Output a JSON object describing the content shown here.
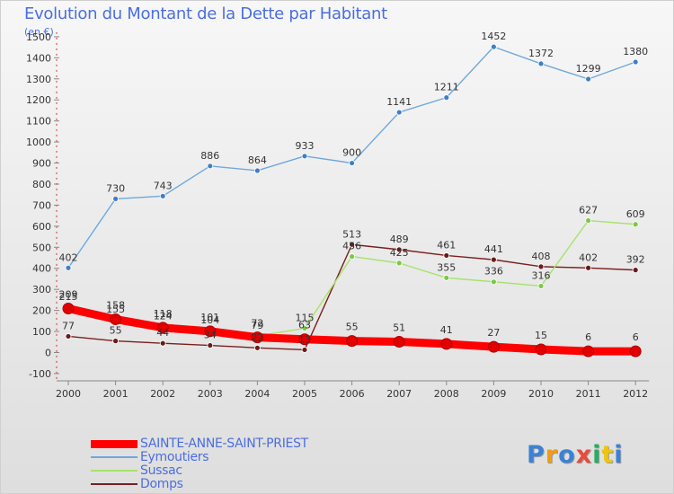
{
  "chart_data": {
    "type": "line",
    "title": "Evolution du Montant de la Dette par Habitant",
    "subtitle": "(en €)",
    "xlabel": "",
    "ylabel": "",
    "categories": [
      "2000",
      "2001",
      "2002",
      "2003",
      "2004",
      "2005",
      "2006",
      "2007",
      "2008",
      "2009",
      "2010",
      "2011",
      "2012"
    ],
    "ylim": [
      -100,
      1500
    ],
    "yticks": [
      -100,
      0,
      100,
      200,
      300,
      400,
      500,
      600,
      700,
      800,
      900,
      1000,
      1100,
      1200,
      1300,
      1400,
      1500
    ],
    "grid": false,
    "legend_position": "bottom-left",
    "series": [
      {
        "name": "SAINTE-ANNE-SAINT-PRIEST",
        "color": "#ff0000",
        "marker_color": "#e00000",
        "values": [
          209,
          158,
          118,
          101,
          72,
          63,
          55,
          51,
          41,
          27,
          15,
          6,
          6
        ],
        "labels": [
          "209",
          "158",
          "118",
          "101",
          "72",
          "63",
          "55",
          "51",
          "41",
          "27",
          "15",
          "6",
          "6"
        ]
      },
      {
        "name": "Eymoutiers",
        "color": "#6fa8dc",
        "marker_color": "#3f7fc4",
        "values": [
          402,
          730,
          743,
          886,
          864,
          933,
          900,
          1141,
          1211,
          1452,
          1372,
          1299,
          1380
        ],
        "labels": [
          "402",
          "730",
          "743",
          "886",
          "864",
          "933",
          "900",
          "1141",
          "1211",
          "1452",
          "1372",
          "1299",
          "1380"
        ]
      },
      {
        "name": "Sussac",
        "color": "#a6e36b",
        "marker_color": "#7ac943",
        "values": [
          215,
          155,
          124,
          104,
          79,
          115,
          456,
          425,
          355,
          336,
          316,
          627,
          609
        ],
        "labels": [
          "215",
          "155",
          "124",
          "104",
          "79",
          "115",
          "456",
          "425",
          "355",
          "336",
          "316",
          "627",
          "609"
        ]
      },
      {
        "name": "Domps",
        "color": "#7b1f1f",
        "marker_color": "#6a1a1a",
        "values": [
          77,
          55,
          44,
          34,
          22,
          13,
          513,
          489,
          461,
          441,
          408,
          402,
          392
        ],
        "labels": [
          "77",
          "55",
          "44",
          "34",
          "22",
          "13",
          "513",
          "489",
          "461",
          "441",
          "408",
          "402",
          "392"
        ]
      }
    ]
  },
  "legend": [
    {
      "label": "SAINTE-ANNE-SAINT-PRIEST",
      "color": "#ff0000"
    },
    {
      "label": "Eymoutiers",
      "color": "#6fa8dc"
    },
    {
      "label": "Sussac",
      "color": "#a6e36b"
    },
    {
      "label": "Domps",
      "color": "#7b1f1f"
    }
  ],
  "brand": {
    "letters": [
      "P",
      "r",
      "o",
      "x",
      "i",
      "t",
      "i"
    ],
    "colors": [
      "#3b82d6",
      "#f39c12",
      "#3b82d6",
      "#e74c3c",
      "#27ae60",
      "#f1c40f",
      "#3b82d6"
    ]
  }
}
